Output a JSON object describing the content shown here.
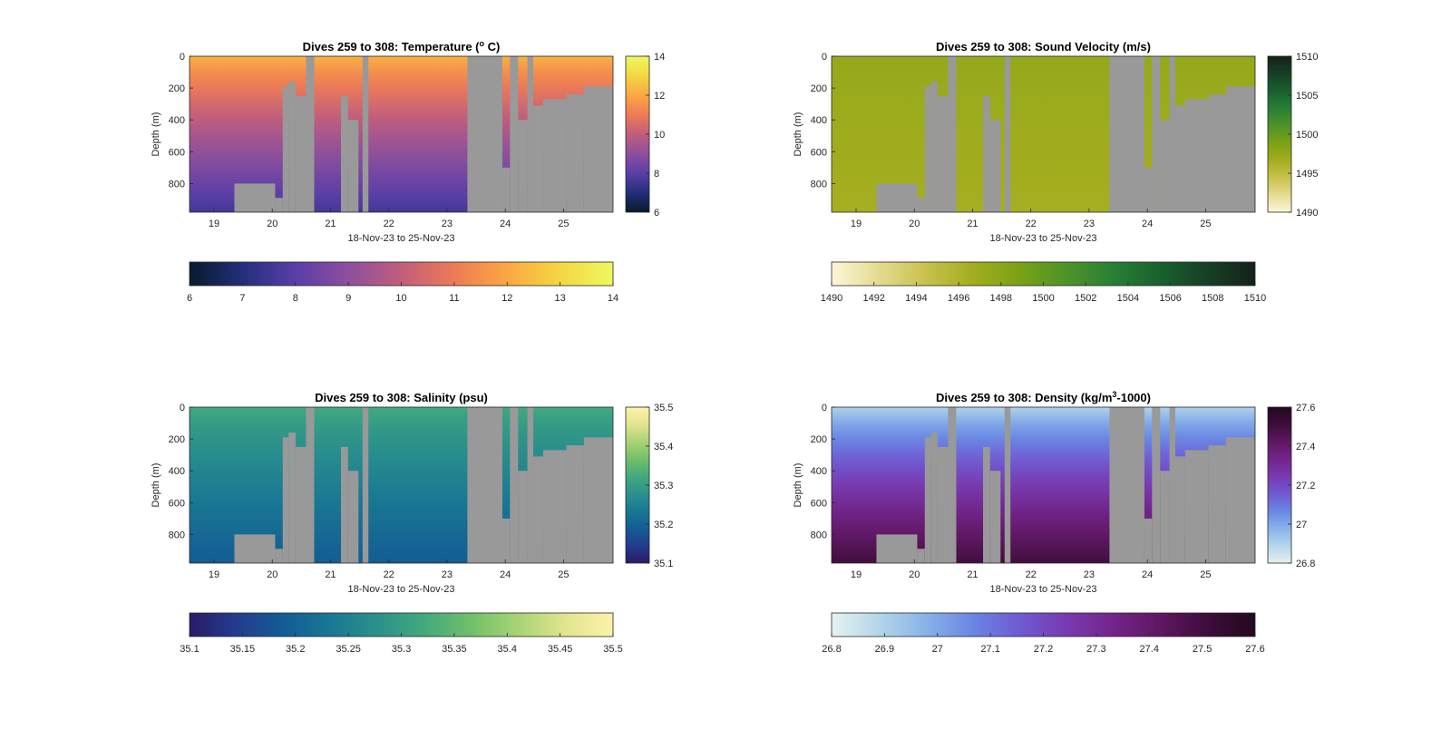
{
  "chart_data": [
    {
      "type": "heatmap",
      "title": "Dives 259 to 308: Temperature (",
      "title_unit": "o",
      "title_tail": " C)",
      "xlabel": "18-Nov-23 to 25-Nov-23",
      "ylabel": "Depth (m)",
      "x_ticks": [
        "19",
        "20",
        "21",
        "22",
        "23",
        "24",
        "25"
      ],
      "y_ticks": [
        "0",
        "200",
        "400",
        "600",
        "800"
      ],
      "xlim": [
        18.58,
        25.85
      ],
      "ylim": [
        0,
        980
      ],
      "surface_value": 12.2,
      "bottom_value": 7.6,
      "colorbar": {
        "vertical_ticks": [
          "14",
          "12",
          "10",
          "8",
          "6"
        ],
        "horizontal_ticks": [
          "6",
          "7",
          "8",
          "9",
          "10",
          "11",
          "12",
          "13",
          "14"
        ],
        "range": [
          6,
          14
        ],
        "colors": [
          "#071b2c",
          "#232f7a",
          "#5a3ea8",
          "#8d4f9d",
          "#c05e7c",
          "#ee7b55",
          "#fba742",
          "#f3d741",
          "#eff861"
        ]
      }
    },
    {
      "type": "heatmap",
      "title": "Dives 259 to 308: Sound Velocity (m/s)",
      "xlabel": "18-Nov-23 to 25-Nov-23",
      "ylabel": "Depth (m)",
      "x_ticks": [
        "19",
        "20",
        "21",
        "22",
        "23",
        "24",
        "25"
      ],
      "y_ticks": [
        "0",
        "200",
        "400",
        "600",
        "800"
      ],
      "xlim": [
        18.58,
        25.85
      ],
      "ylim": [
        0,
        980
      ],
      "surface_value": 1497.5,
      "bottom_value": 1496.5,
      "colorbar": {
        "vertical_ticks": [
          "1510",
          "1505",
          "1500",
          "1495",
          "1490"
        ],
        "horizontal_ticks": [
          "1490",
          "1492",
          "1494",
          "1496",
          "1498",
          "1500",
          "1502",
          "1504",
          "1506",
          "1508",
          "1510"
        ],
        "range": [
          1490,
          1510
        ],
        "colors": [
          "#fdf7d7",
          "#e4da90",
          "#c8c14e",
          "#a3ad1e",
          "#7aa115",
          "#4e9328",
          "#277f35",
          "#19602f",
          "#173f26",
          "#142219"
        ]
      }
    },
    {
      "type": "heatmap",
      "title": "Dives 259 to 308: Salinity (psu)",
      "xlabel": "18-Nov-23 to 25-Nov-23",
      "ylabel": "Depth (m)",
      "x_ticks": [
        "19",
        "20",
        "21",
        "22",
        "23",
        "24",
        "25"
      ],
      "y_ticks": [
        "0",
        "200",
        "400",
        "600",
        "800"
      ],
      "xlim": [
        18.58,
        25.85
      ],
      "ylim": [
        0,
        980
      ],
      "surface_value": 35.32,
      "bottom_value": 35.19,
      "colorbar": {
        "vertical_ticks": [
          "35.5",
          "35.4",
          "35.3",
          "35.2",
          "35.1"
        ],
        "horizontal_ticks": [
          "35.1",
          "35.15",
          "35.2",
          "35.25",
          "35.3",
          "35.35",
          "35.4",
          "35.45",
          "35.5"
        ],
        "range": [
          35.1,
          35.5
        ],
        "colors": [
          "#2a1a66",
          "#233c8f",
          "#135c94",
          "#197893",
          "#2b918c",
          "#43a97d",
          "#71c069",
          "#a9d476",
          "#e2e48e",
          "#fdf2ab"
        ]
      }
    },
    {
      "type": "heatmap",
      "title": "Dives 259 to 308: Density (kg/m",
      "title_unit": "3",
      "title_tail": "-1000)",
      "xlabel": "18-Nov-23 to 25-Nov-23",
      "ylabel": "Depth (m)",
      "x_ticks": [
        "19",
        "20",
        "21",
        "22",
        "23",
        "24",
        "25"
      ],
      "y_ticks": [
        "0",
        "200",
        "400",
        "600",
        "800"
      ],
      "xlim": [
        18.58,
        25.85
      ],
      "ylim": [
        0,
        980
      ],
      "surface_value": 26.9,
      "bottom_value": 27.5,
      "colorbar": {
        "vertical_ticks": [
          "27.6",
          "27.4",
          "27.2",
          "27",
          "26.8"
        ],
        "horizontal_ticks": [
          "26.8",
          "26.9",
          "27",
          "27.1",
          "27.2",
          "27.3",
          "27.4",
          "27.5",
          "27.6"
        ],
        "range": [
          26.8,
          27.6
        ],
        "colors": [
          "#e6f1f1",
          "#b4d6e9",
          "#88b3e8",
          "#6a86e3",
          "#6f5ad3",
          "#783ab0",
          "#73248a",
          "#5e1761",
          "#3c0d3a",
          "#230920"
        ]
      }
    }
  ]
}
